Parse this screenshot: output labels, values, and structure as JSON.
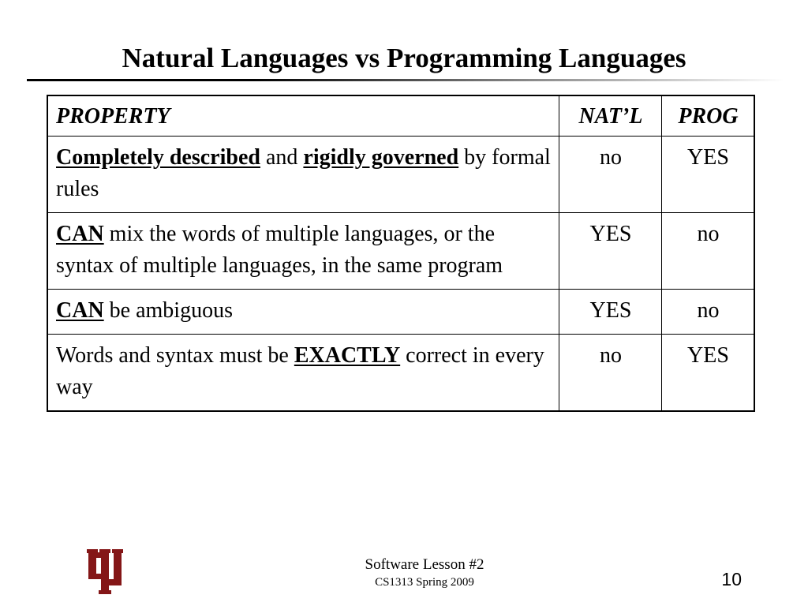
{
  "slide": {
    "title": "Natural Languages vs Programming Languages"
  },
  "table": {
    "headers": {
      "property": "PROPERTY",
      "natl": "NAT’L",
      "prog": "PROG"
    },
    "rows": [
      {
        "property": [
          {
            "text": "Completely described",
            "emphasis": true
          },
          {
            "text": " and ",
            "emphasis": false
          },
          {
            "text": "rigidly governed",
            "emphasis": true
          },
          {
            "text": " by formal rules",
            "emphasis": false
          }
        ],
        "natl": "no",
        "prog": "YES"
      },
      {
        "property": [
          {
            "text": "CAN",
            "emphasis": true
          },
          {
            "text": " mix the words of multiple languages, or the syntax of multiple languages, in the same program",
            "emphasis": false
          }
        ],
        "natl": "YES",
        "prog": "no"
      },
      {
        "property": [
          {
            "text": "CAN",
            "emphasis": true
          },
          {
            "text": " be ambiguous",
            "emphasis": false
          }
        ],
        "natl": "YES",
        "prog": "no"
      },
      {
        "property": [
          {
            "text": "Words and syntax must be ",
            "emphasis": false
          },
          {
            "text": "EXACTLY",
            "emphasis": true
          },
          {
            "text": " correct in every way",
            "emphasis": false
          }
        ],
        "natl": "no",
        "prog": "YES"
      }
    ]
  },
  "footer": {
    "course": "Software Lesson #2",
    "term": "CS1313 Spring 2009",
    "page_number": "10",
    "logo": {
      "icon": "ou-logo-icon",
      "color": "#841617"
    }
  },
  "colors": {
    "text": "#000000",
    "background": "#ffffff",
    "logo": "#841617"
  }
}
